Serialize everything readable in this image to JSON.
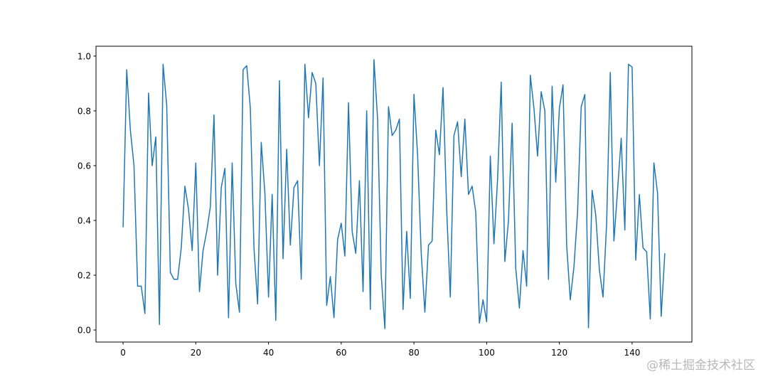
{
  "chart_data": {
    "type": "line",
    "x": [
      0,
      1,
      2,
      3,
      4,
      5,
      6,
      7,
      8,
      9,
      10,
      11,
      12,
      13,
      14,
      15,
      16,
      17,
      18,
      19,
      20,
      21,
      22,
      23,
      24,
      25,
      26,
      27,
      28,
      29,
      30,
      31,
      32,
      33,
      34,
      35,
      36,
      37,
      38,
      39,
      40,
      41,
      42,
      43,
      44,
      45,
      46,
      47,
      48,
      49,
      50,
      51,
      52,
      53,
      54,
      55,
      56,
      57,
      58,
      59,
      60,
      61,
      62,
      63,
      64,
      65,
      66,
      67,
      68,
      69,
      70,
      71,
      72,
      73,
      74,
      75,
      76,
      77,
      78,
      79,
      80,
      81,
      82,
      83,
      84,
      85,
      86,
      87,
      88,
      89,
      90,
      91,
      92,
      93,
      94,
      95,
      96,
      97,
      98,
      99,
      100,
      101,
      102,
      103,
      104,
      105,
      106,
      107,
      108,
      109,
      110,
      111,
      112,
      113,
      114,
      115,
      116,
      117,
      118,
      119,
      120,
      121,
      122,
      123,
      124,
      125,
      126,
      127,
      128,
      129,
      130,
      131,
      132,
      133,
      134,
      135,
      136,
      137,
      138,
      139,
      140,
      141,
      142,
      143,
      144,
      145,
      146,
      147,
      148,
      149
    ],
    "series": [
      {
        "color": "#1f77b4",
        "values": [
          0.375,
          0.95,
          0.73,
          0.6,
          0.16,
          0.16,
          0.06,
          0.865,
          0.6,
          0.705,
          0.02,
          0.97,
          0.82,
          0.21,
          0.185,
          0.185,
          0.3,
          0.525,
          0.44,
          0.29,
          0.61,
          0.14,
          0.29,
          0.36,
          0.45,
          0.785,
          0.2,
          0.52,
          0.59,
          0.045,
          0.61,
          0.17,
          0.065,
          0.95,
          0.965,
          0.81,
          0.3,
          0.095,
          0.685,
          0.5,
          0.12,
          0.495,
          0.035,
          0.91,
          0.26,
          0.66,
          0.31,
          0.52,
          0.545,
          0.185,
          0.97,
          0.775,
          0.94,
          0.9,
          0.6,
          0.92,
          0.09,
          0.195,
          0.045,
          0.33,
          0.39,
          0.27,
          0.83,
          0.36,
          0.28,
          0.545,
          0.14,
          0.8,
          0.075,
          0.987,
          0.77,
          0.2,
          0.005,
          0.815,
          0.71,
          0.73,
          0.77,
          0.075,
          0.36,
          0.115,
          0.86,
          0.64,
          0.28,
          0.065,
          0.31,
          0.325,
          0.73,
          0.64,
          0.885,
          0.44,
          0.12,
          0.71,
          0.76,
          0.56,
          0.77,
          0.495,
          0.525,
          0.43,
          0.025,
          0.11,
          0.03,
          0.635,
          0.315,
          0.55,
          0.905,
          0.25,
          0.4,
          0.755,
          0.225,
          0.08,
          0.29,
          0.16,
          0.93,
          0.81,
          0.635,
          0.87,
          0.8,
          0.185,
          0.89,
          0.54,
          0.81,
          0.895,
          0.31,
          0.11,
          0.23,
          0.43,
          0.815,
          0.86,
          0.008,
          0.51,
          0.42,
          0.22,
          0.12,
          0.39,
          0.94,
          0.325,
          0.51,
          0.7,
          0.365,
          0.97,
          0.96,
          0.255,
          0.495,
          0.3,
          0.285,
          0.04,
          0.61,
          0.5,
          0.05,
          0.28
        ]
      }
    ],
    "xlim": [
      -7.45,
      156.45
    ],
    "ylim": [
      -0.044,
      1.036
    ],
    "xticks": [
      0,
      20,
      40,
      60,
      80,
      100,
      120,
      140
    ],
    "yticks": [
      {
        "value": 0,
        "label": "0.0"
      },
      {
        "value": 0.2,
        "label": "0.2"
      },
      {
        "value": 0.4,
        "label": "0.4"
      },
      {
        "value": 0.6,
        "label": "0.6"
      },
      {
        "value": 0.8,
        "label": "0.8"
      },
      {
        "value": 1,
        "label": "1.0"
      }
    ]
  },
  "watermark": "@稀土掘金技术社区"
}
